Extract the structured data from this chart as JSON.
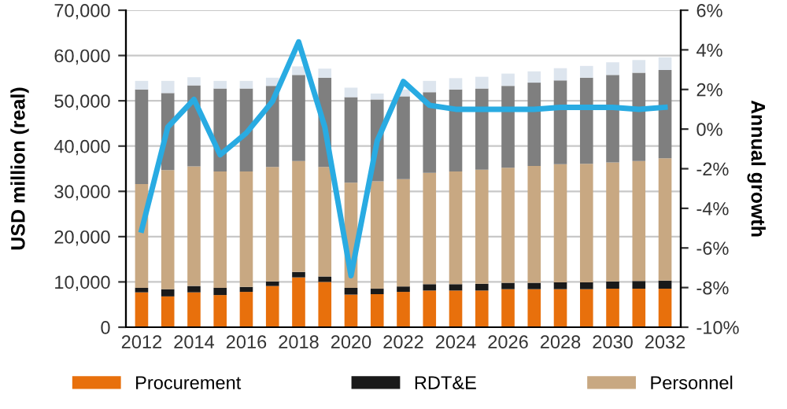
{
  "chart_data": {
    "type": "bar",
    "stacked": true,
    "ylabel": "USD million (real)",
    "y2label": "Annual growth",
    "categories": [
      "2012",
      null,
      "2014",
      null,
      "2016",
      null,
      "2018",
      null,
      "2020",
      null,
      "2022",
      null,
      "2024",
      null,
      "2026",
      null,
      "2028",
      null,
      "2030",
      null,
      "2032"
    ],
    "series": [
      {
        "name": "Procurement",
        "color": "#e8700c",
        "values": [
          7700,
          6800,
          7700,
          7100,
          7800,
          9100,
          11000,
          10000,
          7200,
          7300,
          7800,
          8100,
          8100,
          8100,
          8400,
          8400,
          8400,
          8400,
          8500,
          8500,
          8500
        ]
      },
      {
        "name": "RDT&E",
        "color": "#1a1a1a",
        "values": [
          1000,
          1600,
          1400,
          1600,
          1100,
          1000,
          1200,
          1200,
          1500,
          1200,
          1200,
          1400,
          1400,
          1500,
          1400,
          1400,
          1500,
          1500,
          1600,
          1700,
          1800
        ]
      },
      {
        "name": "Personnel",
        "color": "#c8a882",
        "values": [
          22900,
          26300,
          26400,
          25700,
          25500,
          25300,
          24500,
          24200,
          23200,
          23700,
          23700,
          24600,
          24900,
          25200,
          25400,
          25800,
          26100,
          26200,
          26300,
          26500,
          27000
        ]
      },
      {
        "color": "#7f7f7f",
        "values": [
          20900,
          17000,
          17900,
          18300,
          18300,
          17900,
          19000,
          19700,
          18900,
          18100,
          18300,
          17800,
          18100,
          17900,
          18100,
          18400,
          18500,
          19000,
          19300,
          19500,
          19500
        ]
      },
      {
        "color": "#dde5ee",
        "values": [
          1900,
          2700,
          1800,
          1700,
          1700,
          1800,
          1900,
          2000,
          2100,
          1300,
          1500,
          2500,
          2500,
          2600,
          2700,
          2500,
          2700,
          2600,
          2800,
          2800,
          2800
        ]
      },
      {
        "type": "line",
        "axis": "y2",
        "color": "#29abe2",
        "values": [
          -5.1,
          0.1,
          1.5,
          -1.3,
          -0.2,
          1.4,
          4.4,
          0.1,
          -7.4,
          -0.6,
          2.4,
          1.2,
          1.0,
          1.0,
          1.0,
          1.0,
          1.1,
          1.1,
          1.1,
          1.0,
          1.1
        ]
      }
    ],
    "ylim": [
      0,
      70000
    ],
    "yticks": [
      0,
      {
        "value": 10000,
        "label": "10,000"
      },
      {
        "value": 20000,
        "label": "20,000"
      },
      {
        "value": 30000,
        "label": "30,000"
      },
      {
        "value": 40000,
        "label": "40,000"
      },
      {
        "value": 50000,
        "label": "50,000"
      },
      {
        "value": 60000,
        "label": "60,000"
      },
      {
        "value": 70000,
        "label": "70,000"
      }
    ],
    "y2lim": [
      -10,
      6
    ],
    "y2ticks": [
      {
        "value": -10,
        "label": "-10%"
      },
      {
        "value": -8,
        "label": "-8%"
      },
      {
        "value": -6,
        "label": "-6%"
      },
      {
        "value": -4,
        "label": "-4%"
      },
      {
        "value": -2,
        "label": "-2%"
      },
      {
        "value": 0,
        "label": "0%"
      },
      {
        "value": 2,
        "label": "2%"
      },
      {
        "value": 4,
        "label": "4%"
      },
      {
        "value": 6,
        "label": "6%"
      }
    ],
    "grid": "y",
    "legend": "bottom"
  }
}
